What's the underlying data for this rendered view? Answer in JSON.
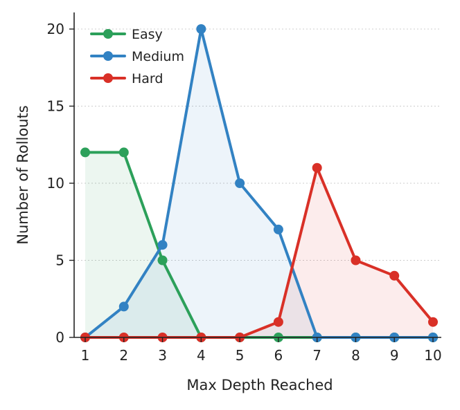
{
  "chart_data": {
    "type": "line",
    "x": [
      1,
      2,
      3,
      4,
      5,
      6,
      7,
      8,
      9,
      10
    ],
    "xlabel": "Max Depth Reached",
    "ylabel": "Number of Rollouts",
    "xlim": [
      1,
      10
    ],
    "ylim": [
      0,
      20
    ],
    "xticks": [
      "1",
      "2",
      "3",
      "4",
      "5",
      "6",
      "7",
      "8",
      "9",
      "10"
    ],
    "yticks": [
      "0",
      "5",
      "10",
      "15",
      "20"
    ],
    "grid": "horizontal dotted",
    "legend_position": "top-left",
    "series": [
      {
        "name": "Easy",
        "color": "#2ca05a",
        "values": [
          12,
          12,
          5,
          0,
          0,
          0,
          0,
          0,
          0,
          0
        ]
      },
      {
        "name": "Medium",
        "color": "#3282c3",
        "values": [
          0,
          2,
          6,
          20,
          10,
          7,
          0,
          0,
          0,
          0
        ]
      },
      {
        "name": "Hard",
        "color": "#d93027",
        "values": [
          0,
          0,
          0,
          0,
          0,
          1,
          11,
          5,
          4,
          1
        ]
      }
    ]
  }
}
